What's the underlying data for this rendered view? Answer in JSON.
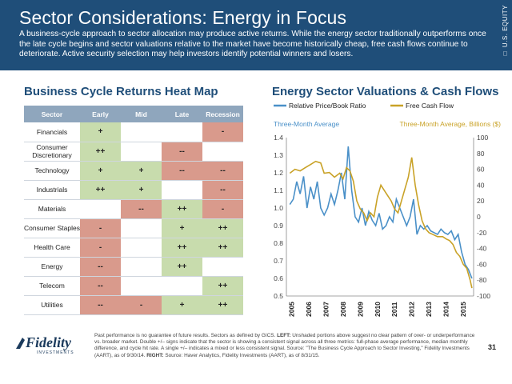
{
  "header": {
    "title": "Sector Considerations: Energy in Focus",
    "subtitle": "A business-cycle approach to sector allocation may produce active returns.  While the energy sector traditionally outperforms once the late cycle begins and sector valuations relative to the market have become historically cheap, free cash flows continue to deteriorate. Active security selection may help investors identify potential winners and losers.",
    "side_tag": "□ U.S. EQUITY"
  },
  "heatmap": {
    "title": "Business Cycle Returns Heat Map",
    "columns": [
      "Sector",
      "Early",
      "Mid",
      "Late",
      "Recession"
    ],
    "rows": [
      {
        "sector": "Financials",
        "cells": [
          [
            "+",
            "g"
          ],
          [
            "",
            "e"
          ],
          [
            "",
            "e"
          ],
          [
            "-",
            "r"
          ]
        ]
      },
      {
        "sector": "Consumer Discretionary",
        "cells": [
          [
            "++",
            "g"
          ],
          [
            "",
            "e"
          ],
          [
            "--",
            "r"
          ],
          [
            "",
            "e"
          ]
        ]
      },
      {
        "sector": "Technology",
        "cells": [
          [
            "+",
            "g"
          ],
          [
            "+",
            "g"
          ],
          [
            "--",
            "r"
          ],
          [
            "--",
            "r"
          ]
        ]
      },
      {
        "sector": "Industrials",
        "cells": [
          [
            "++",
            "g"
          ],
          [
            "+",
            "g"
          ],
          [
            "",
            "e"
          ],
          [
            "--",
            "r"
          ]
        ]
      },
      {
        "sector": "Materials",
        "cells": [
          [
            "",
            "e"
          ],
          [
            "--",
            "r"
          ],
          [
            "++",
            "g"
          ],
          [
            "-",
            "r"
          ]
        ]
      },
      {
        "sector": "Consumer Staples",
        "cells": [
          [
            "-",
            "r"
          ],
          [
            "",
            "e"
          ],
          [
            "+",
            "g"
          ],
          [
            "++",
            "g"
          ]
        ]
      },
      {
        "sector": "Health Care",
        "cells": [
          [
            "-",
            "r"
          ],
          [
            "",
            "e"
          ],
          [
            "++",
            "g"
          ],
          [
            "++",
            "g"
          ]
        ]
      },
      {
        "sector": "Energy",
        "cells": [
          [
            "--",
            "r"
          ],
          [
            "",
            "e"
          ],
          [
            "++",
            "g"
          ],
          [
            "",
            "e"
          ]
        ]
      },
      {
        "sector": "Telecom",
        "cells": [
          [
            "--",
            "r"
          ],
          [
            "",
            "e"
          ],
          [
            "",
            "e"
          ],
          [
            "++",
            "g"
          ]
        ]
      },
      {
        "sector": "Utilities",
        "cells": [
          [
            "--",
            "r"
          ],
          [
            "-",
            "r"
          ],
          [
            "+",
            "g"
          ],
          [
            "++",
            "g"
          ]
        ]
      }
    ]
  },
  "chart_data": {
    "type": "line",
    "title": "Energy Sector Valuations & Cash Flows",
    "left_axis_label": "Three-Month Average",
    "right_axis_label": "Three-Month Average, Billions ($)",
    "ylim_left": [
      0.5,
      1.4
    ],
    "ylim_right": [
      -100,
      100
    ],
    "left_ticks": [
      "1.4",
      "1.3",
      "1.2",
      "1.1",
      "1.0",
      "0.9",
      "0.8",
      "0.7",
      "0.6",
      "0.5"
    ],
    "right_ticks": [
      "100",
      "80",
      "60",
      "40",
      "20",
      "0",
      "-20",
      "-40",
      "-60",
      "-80",
      "-100"
    ],
    "x_ticks": [
      "2005",
      "2006",
      "2007",
      "2008",
      "2009",
      "2010",
      "2011",
      "2012",
      "2013",
      "2014",
      "2015"
    ],
    "series": [
      {
        "name": "Relative Price/Book Ratio",
        "axis": "left",
        "color": "#4a90c8",
        "x": [
          2005.0,
          2005.2,
          2005.4,
          2005.6,
          2005.8,
          2006.0,
          2006.2,
          2006.4,
          2006.6,
          2006.8,
          2007.0,
          2007.2,
          2007.4,
          2007.6,
          2007.8,
          2008.0,
          2008.2,
          2008.4,
          2008.6,
          2008.8,
          2009.0,
          2009.2,
          2009.4,
          2009.6,
          2009.8,
          2010.0,
          2010.2,
          2010.4,
          2010.6,
          2010.8,
          2011.0,
          2011.2,
          2011.4,
          2011.6,
          2011.8,
          2012.0,
          2012.2,
          2012.4,
          2012.6,
          2012.8,
          2013.0,
          2013.2,
          2013.4,
          2013.6,
          2013.8,
          2014.0,
          2014.2,
          2014.4,
          2014.6,
          2014.8,
          2015.0,
          2015.2,
          2015.4,
          2015.6
        ],
        "values": [
          1.02,
          1.05,
          1.15,
          1.08,
          1.18,
          1.0,
          1.12,
          1.05,
          1.15,
          1.0,
          0.96,
          1.0,
          1.08,
          1.02,
          1.1,
          1.2,
          1.05,
          1.35,
          1.1,
          0.95,
          0.92,
          1.0,
          0.9,
          0.98,
          0.93,
          0.9,
          0.97,
          0.88,
          0.9,
          0.95,
          0.92,
          1.05,
          1.0,
          0.95,
          0.9,
          0.95,
          1.05,
          0.85,
          0.9,
          0.88,
          0.9,
          0.87,
          0.86,
          0.85,
          0.88,
          0.86,
          0.85,
          0.87,
          0.82,
          0.85,
          0.75,
          0.68,
          0.65,
          0.6
        ]
      },
      {
        "name": "Free Cash Flow",
        "axis": "right",
        "color": "#c9a227",
        "x": [
          2005.0,
          2005.3,
          2005.6,
          2005.9,
          2006.2,
          2006.5,
          2006.8,
          2007.0,
          2007.3,
          2007.6,
          2007.9,
          2008.1,
          2008.3,
          2008.5,
          2008.7,
          2008.9,
          2009.1,
          2009.3,
          2009.5,
          2009.7,
          2009.9,
          2010.1,
          2010.3,
          2010.6,
          2010.9,
          2011.1,
          2011.3,
          2011.5,
          2011.7,
          2011.9,
          2012.1,
          2012.3,
          2012.5,
          2012.7,
          2012.9,
          2013.1,
          2013.3,
          2013.6,
          2013.9,
          2014.1,
          2014.3,
          2014.5,
          2014.7,
          2014.9,
          2015.1,
          2015.3,
          2015.5,
          2015.6
        ],
        "values": [
          55,
          60,
          58,
          62,
          66,
          70,
          68,
          55,
          56,
          50,
          55,
          48,
          62,
          58,
          45,
          20,
          10,
          5,
          -5,
          5,
          0,
          25,
          40,
          30,
          20,
          10,
          5,
          20,
          35,
          50,
          75,
          40,
          15,
          -5,
          -15,
          -20,
          -22,
          -25,
          -25,
          -28,
          -30,
          -35,
          -45,
          -50,
          -60,
          -65,
          -80,
          -90
        ]
      }
    ]
  },
  "footer": {
    "note_prefix": "Past performance is no guarantee of future results. Sectors as defined by GICS. ",
    "left_label": "LEFT:",
    "note_mid": " Unshaded portions above suggest no clear pattern of over- or underperformance vs. broader market. Double +/– signs indicate that the sector is showing a consistent signal across all three metrics: full-phase average performance, median monthly difference, and cycle hit rate. A single +/– indicates a mixed or less consistent signal. Source: \"The Business Cycle Approach to Sector Investing,\" Fidelity Investments (AART), as of 9/30/14. ",
    "right_label": "RIGHT:",
    "note_end": " Source: Haver Analytics, Fidelity Investments (AART), as of 8/31/15.",
    "page": "31",
    "logo_text": "Fidelity",
    "logo_sub": "INVESTMENTS"
  },
  "colors": {
    "banner": "#1f4e79",
    "positive": "#c8dcad",
    "negative": "#d99a8c",
    "pb_line": "#4a90c8",
    "fcf_line": "#c9a227"
  }
}
